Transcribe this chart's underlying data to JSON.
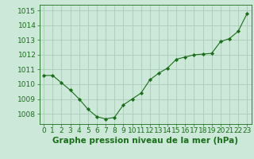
{
  "x": [
    0,
    1,
    2,
    3,
    4,
    5,
    6,
    7,
    8,
    9,
    10,
    11,
    12,
    13,
    14,
    15,
    16,
    17,
    18,
    19,
    20,
    21,
    22,
    23
  ],
  "y": [
    1010.6,
    1010.6,
    1010.1,
    1009.6,
    1009.0,
    1008.3,
    1007.8,
    1007.65,
    1007.75,
    1008.6,
    1009.0,
    1009.4,
    1010.3,
    1010.75,
    1011.1,
    1011.7,
    1011.85,
    1012.0,
    1012.05,
    1012.1,
    1012.9,
    1013.1,
    1013.6,
    1014.8
  ],
  "line_color": "#1a6e1a",
  "marker_color": "#1a6e1a",
  "bg_color": "#cce8d8",
  "grid_color": "#aaccb8",
  "title": "Graphe pression niveau de la mer (hPa)",
  "ylabel_ticks": [
    1008,
    1009,
    1010,
    1011,
    1012,
    1013,
    1014,
    1015
  ],
  "ylim": [
    1007.3,
    1015.4
  ],
  "xlim": [
    -0.5,
    23.5
  ],
  "xlabel_ticks": [
    0,
    1,
    2,
    3,
    4,
    5,
    6,
    7,
    8,
    9,
    10,
    11,
    12,
    13,
    14,
    15,
    16,
    17,
    18,
    19,
    20,
    21,
    22,
    23
  ],
  "title_fontsize": 7.5,
  "tick_fontsize": 6.5,
  "title_color": "#1a6e1a",
  "axis_color": "#1a6e1a"
}
